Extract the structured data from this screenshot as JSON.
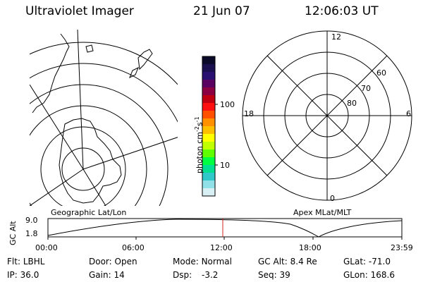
{
  "header": {
    "title": "Ultraviolet Imager",
    "date": "21 Jun 07",
    "time": "12:06:03 UT"
  },
  "colorbar": {
    "label": "photon cm",
    "label_sup1": "-2",
    "label_mid": "s",
    "label_sup2": "-1",
    "tick_high": "100",
    "tick_low": "10",
    "colors": [
      "#0a0a28",
      "#1a1050",
      "#2a1070",
      "#5a0060",
      "#8a0040",
      "#c00010",
      "#ff1010",
      "#ff5000",
      "#ff9000",
      "#ffc000",
      "#ffff00",
      "#c0ff00",
      "#60ff00",
      "#00ff40",
      "#00e090",
      "#30c8c8",
      "#90e0e8",
      "#d8f0f4"
    ]
  },
  "polar": {
    "labels": {
      "top": "12",
      "left": "18",
      "right": "6",
      "bottom": "0"
    },
    "lat_labels": [
      "80",
      "70",
      "60"
    ]
  },
  "alt_plot": {
    "ylabel": "GC Alt",
    "ytick_top": "9.0",
    "ytick_bottom": "1.8",
    "left_title": "Geographic Lat/Lon",
    "right_title": "Apex MLat/MLT",
    "xticks": [
      "00:00",
      "06:00",
      "12:00",
      "18:00",
      "23:59"
    ]
  },
  "info": {
    "row1": [
      {
        "label": "Flt:",
        "value": "LBHL"
      },
      {
        "label": "Door:",
        "value": "Open"
      },
      {
        "label": "Mode:",
        "value": "Normal"
      },
      {
        "label": "GC Alt:",
        "value": "8.4 Re"
      },
      {
        "label": "GLat:",
        "value": "-71.0"
      }
    ],
    "row2": [
      {
        "label": "IP:",
        "value": "36.0"
      },
      {
        "label": "Gain:",
        "value": "14"
      },
      {
        "label": "Dsp:",
        "value": "-3.2"
      },
      {
        "label": "Seq:",
        "value": "39"
      },
      {
        "label": "GLon:",
        "value": "168.6"
      }
    ]
  }
}
